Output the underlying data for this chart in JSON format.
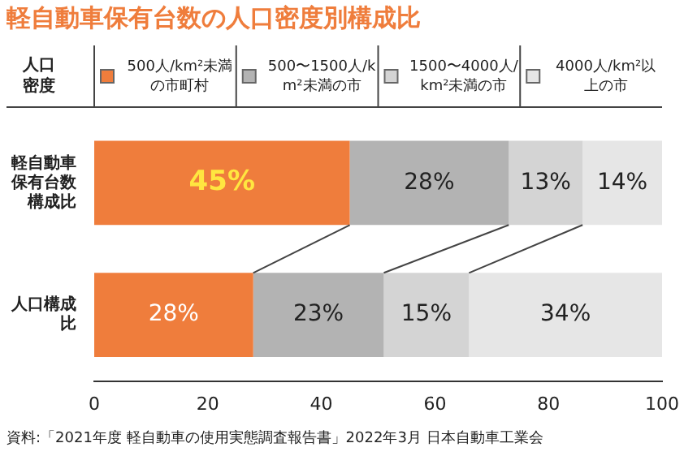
{
  "chart_data": {
    "type": "bar",
    "orientation": "horizontal",
    "stacked": true,
    "title": "軽自動車保有台数の人口密度別構成比",
    "legend_title": "人口密度",
    "legend": "top",
    "categories": [
      "軽自動車保有台数構成比",
      "人口構成比"
    ],
    "series": [
      {
        "name": "500人/km²未満の市町村",
        "color": "#ef7d3c",
        "values": [
          45,
          28
        ],
        "value_labels": [
          "45%",
          "28%"
        ]
      },
      {
        "name": "500〜1500人/km²未満の市",
        "color": "#b3b3b3",
        "values": [
          28,
          23
        ],
        "value_labels": [
          "28%",
          "23%"
        ]
      },
      {
        "name": "1500〜4000人/km²未満の市",
        "color": "#d4d4d4",
        "values": [
          13,
          15
        ],
        "value_labels": [
          "13%",
          "15%"
        ]
      },
      {
        "name": "4000人/km²以上の市",
        "color": "#e6e6e6",
        "values": [
          14,
          34
        ],
        "value_labels": [
          "14%",
          "34%"
        ]
      }
    ],
    "xlim": [
      0,
      100
    ],
    "xticks": [
      0,
      20,
      40,
      60,
      80,
      100
    ],
    "grid": false,
    "annotations": [
      "資料:「2021年度 軽自動車の使用実態調査報告書」2022年3月 日本自動車工業会"
    ]
  }
}
